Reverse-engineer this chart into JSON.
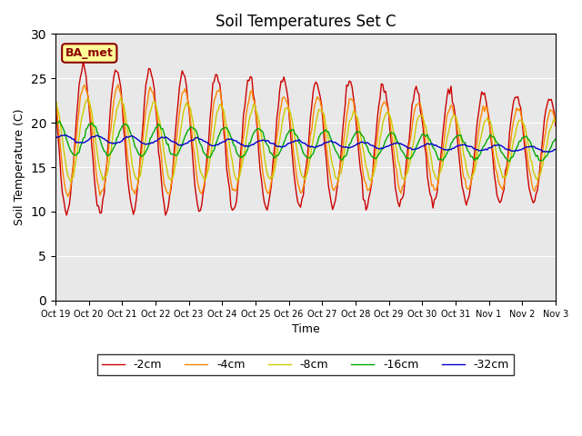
{
  "title": "Soil Temperatures Set C",
  "xlabel": "Time",
  "ylabel": "Soil Temperature (C)",
  "ylim": [
    0,
    30
  ],
  "yticks": [
    0,
    5,
    10,
    15,
    20,
    25,
    30
  ],
  "legend_label": "BA_met",
  "bg_color": "#e8e8e8",
  "series_colors": {
    "-2cm": "#cc0000",
    "-4cm": "#ff8800",
    "-8cm": "#cccc00",
    "-16cm": "#00aa00",
    "-32cm": "#0000cc"
  },
  "xtick_labels": [
    "Oct 19",
    "Oct 20",
    "Oct 21",
    "Oct 22",
    "Oct 23",
    "Oct 24",
    "Oct 25",
    "Oct 26",
    "Oct 27",
    "Oct 28",
    "Oct 29",
    "Oct 30",
    "Oct 31",
    "Nov 1",
    "Nov 2",
    "Nov 3"
  ],
  "n_days": 15,
  "points_per_day": 24
}
